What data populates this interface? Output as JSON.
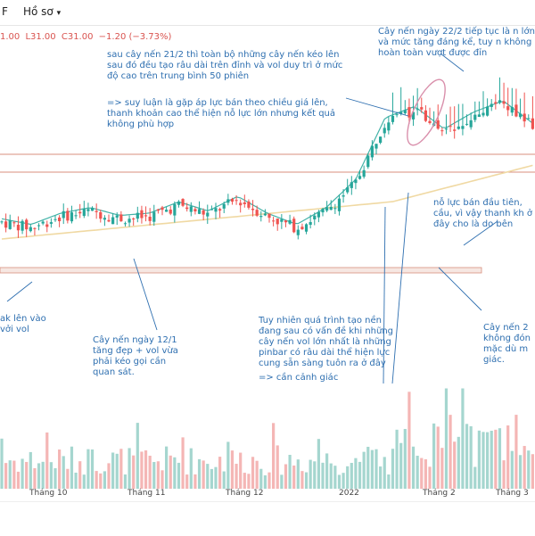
{
  "toolbar": {
    "menu_label": "F",
    "profile_label": "Hồ sơ"
  },
  "ohlc_legend": {
    "open": "1.00",
    "high": "L31.00",
    "close": "C31.00",
    "change": "−1.20 (−3.73%)"
  },
  "x_axis_labels": [
    "Tháng 10",
    "Tháng 11",
    "Tháng 12",
    "2022",
    "Tháng 2",
    "Tháng 3"
  ],
  "annotations": {
    "note_top_center": "sau cây nến 21/2 thì toàn bộ những cây nến kéo lên sau đó đều tạo râu dài trên đỉnh và vol duy trì ở mức độ cao trên trung bình 50 phiên",
    "note_top_center_2": "=> suy luận là gặp áp lực bán theo chiều giá lên, thanh khoản cao thể hiện nỗ lực lớn nhưng kết quả không phù hợp",
    "note_top_right": "Cây nến ngày 22/2 tiếp tục là n lớn và mức tăng đáng kể, tuy n không hoàn toàn vượt được đỉn",
    "note_mid_right": "nỗ lực bán đầu tiên, cầu, vì vậy thanh kh ở đây cho là do bên",
    "note_left_1": "ak lên vào",
    "note_left_2": "vởi vol",
    "note_bottom_left": "Cây nến ngày 12/1 tăng đẹp + vol vừa phải kéo gọi cần quan sát.",
    "note_bottom_center": "Tuy nhiên quá trình tạo nền đang sau có vấn đề khi những cây nến vol lớn nhất là những pinbar có râu dài thể hiện lực cung sẵn sàng tuôn ra ở đây",
    "note_bottom_center_2": "=> cần cảnh giác",
    "note_bottom_right": "Cây nến 2 không đón mặc dù m giác."
  },
  "colors": {
    "up": "#26a69a",
    "down": "#ef5350",
    "vol_up": "#a5d6cf",
    "vol_down": "#f4b6b5",
    "ma_fast": "#43b3a8",
    "ma_slow": "#f0d9a3",
    "annotation": "#2e6fb0",
    "support_line": "#d88f7e",
    "highlight_ellipse": "#f3c9d6"
  },
  "chart_data": {
    "type": "candlestick",
    "title": "",
    "x": [
      "Tháng 10",
      "Tháng 11",
      "Tháng 12",
      "2022",
      "Tháng 2",
      "Tháng 3"
    ],
    "approx_close_path": [
      21.5,
      21.0,
      22.0,
      22.5,
      21.8,
      22.0,
      23.0,
      22.2,
      23.5,
      22.0,
      21.0,
      22.5,
      25.0,
      30.5,
      31.5,
      29.5,
      31.0,
      32.0,
      30.0
    ],
    "horizontal_levels": [
      "resistance",
      "support"
    ],
    "moving_averages": [
      "fast MA",
      "slow MA"
    ],
    "volume": true,
    "grid": false
  }
}
